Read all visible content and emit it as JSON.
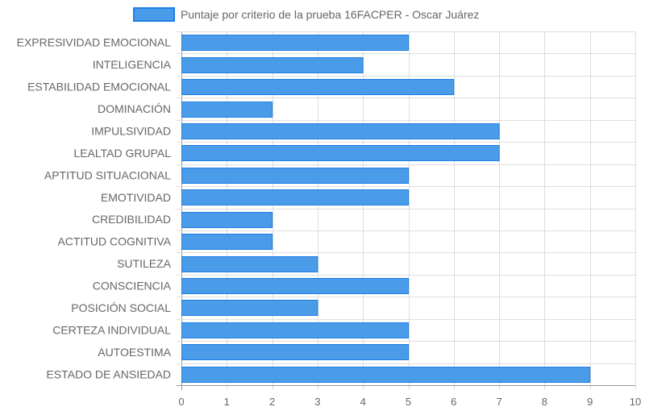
{
  "chart_data": {
    "type": "bar",
    "orientation": "horizontal",
    "title": "",
    "legend": {
      "position": "top",
      "label": "Puntaje por criterio de la prueba 16FACPER - Oscar Juárez",
      "color": "#4a9be8"
    },
    "categories": [
      "EXPRESIVIDAD EMOCIONAL",
      "INTELIGENCIA",
      "ESTABILIDAD EMOCIONAL",
      "DOMINACIÓN",
      "IMPULSIVIDAD",
      "LEALTAD GRUPAL",
      "APTITUD SITUACIONAL",
      "EMOTIVIDAD",
      "CREDIBILIDAD",
      "ACTITUD COGNITIVA",
      "SUTILEZA",
      "CONSCIENCIA",
      "POSICIÓN SOCIAL",
      "CERTEZA INDIVIDUAL",
      "AUTOESTIMA",
      "ESTADO DE ANSIEDAD"
    ],
    "series": [
      {
        "name": "Puntaje por criterio de la prueba 16FACPER - Oscar Juárez",
        "values": [
          5,
          4,
          6,
          2,
          7,
          7,
          5,
          5,
          2,
          2,
          3,
          5,
          3,
          5,
          5,
          9
        ]
      }
    ],
    "xlim": [
      0,
      10
    ],
    "x_ticks": [
      "0",
      "1",
      "2",
      "3",
      "4",
      "5",
      "6",
      "7",
      "8",
      "9",
      "10"
    ],
    "grid": true,
    "colors": {
      "bar_fill": "#4a9be8",
      "bar_border": "#1e7fe6",
      "grid": "#dddddd",
      "axis": "#999999",
      "text": "#666666"
    }
  }
}
